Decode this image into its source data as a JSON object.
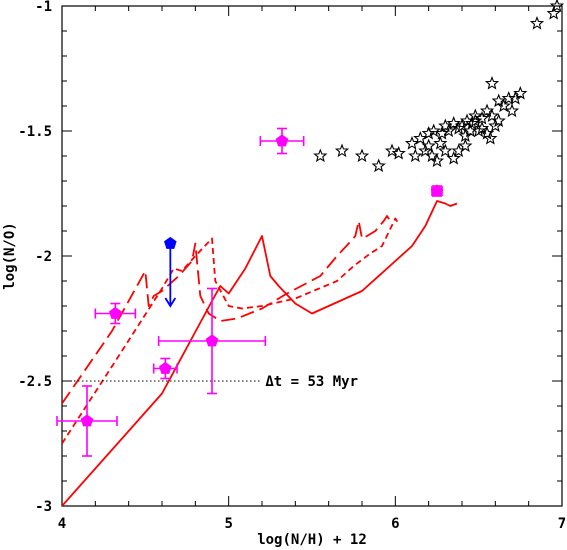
{
  "chart_data": {
    "type": "scatter",
    "xlabel": "log(N/H) + 12",
    "ylabel": "log(N/O)",
    "xlim": [
      4,
      7
    ],
    "ylim": [
      -3,
      -1
    ],
    "xticks": [
      {
        "value": 4,
        "label": "4"
      },
      {
        "value": 5,
        "label": "5"
      },
      {
        "value": 6,
        "label": "6"
      },
      {
        "value": 7,
        "label": "7"
      }
    ],
    "yticks": [
      {
        "value": -3,
        "label": "-3"
      },
      {
        "value": -2.5,
        "label": "-2.5"
      },
      {
        "value": -2,
        "label": "-2"
      },
      {
        "value": -1.5,
        "label": "-1.5"
      },
      {
        "value": -1,
        "label": "-1"
      }
    ],
    "grid": false,
    "colors": {
      "model": "#ff0000",
      "observed": "#ff00ff",
      "upper_limit": "#0000ff",
      "stars": "#000000"
    },
    "annotation": {
      "text": "Δt = 53 Myr",
      "line_y": -2.5,
      "line_x": [
        4.0,
        5.2
      ],
      "text_x": 5.22
    },
    "series": [
      {
        "style": "solid",
        "color": "#ff0000",
        "points": [
          [
            4.0,
            -3.0
          ],
          [
            4.6,
            -2.55
          ],
          [
            4.9,
            -2.18
          ],
          [
            4.95,
            -2.12
          ],
          [
            5.0,
            -2.15
          ],
          [
            5.1,
            -2.05
          ],
          [
            5.2,
            -1.92
          ],
          [
            5.25,
            -2.08
          ],
          [
            5.3,
            -2.12
          ],
          [
            5.4,
            -2.19
          ],
          [
            5.5,
            -2.23
          ],
          [
            5.6,
            -2.2
          ],
          [
            5.8,
            -2.14
          ],
          [
            6.1,
            -1.96
          ],
          [
            6.18,
            -1.88
          ],
          [
            6.25,
            -1.78
          ],
          [
            6.3,
            -1.79
          ],
          [
            6.33,
            -1.8
          ],
          [
            6.37,
            -1.79
          ]
        ]
      },
      {
        "style": "long-dash",
        "color": "#ff0000",
        "points": [
          [
            4.0,
            -2.59
          ],
          [
            4.3,
            -2.3
          ],
          [
            4.45,
            -2.12
          ],
          [
            4.5,
            -2.06
          ],
          [
            4.52,
            -2.2
          ],
          [
            4.55,
            -2.16
          ],
          [
            4.6,
            -2.14
          ],
          [
            4.7,
            -2.08
          ],
          [
            4.78,
            -2.02
          ],
          [
            4.8,
            -1.95
          ],
          [
            4.83,
            -2.16
          ],
          [
            4.88,
            -2.23
          ],
          [
            4.95,
            -2.26
          ],
          [
            5.05,
            -2.25
          ],
          [
            5.2,
            -2.21
          ],
          [
            5.35,
            -2.15
          ],
          [
            5.55,
            -2.08
          ],
          [
            5.65,
            -2.0
          ],
          [
            5.72,
            -1.95
          ],
          [
            5.76,
            -1.92
          ],
          [
            5.78,
            -1.86
          ],
          [
            5.8,
            -1.93
          ],
          [
            5.83,
            -1.92
          ],
          [
            5.88,
            -1.9
          ],
          [
            5.93,
            -1.86
          ],
          [
            5.95,
            -1.84
          ],
          [
            5.98,
            -1.87
          ]
        ]
      },
      {
        "style": "short-dash",
        "color": "#ff0000",
        "points": [
          [
            4.0,
            -2.75
          ],
          [
            4.35,
            -2.39
          ],
          [
            4.6,
            -2.13
          ],
          [
            4.67,
            -2.05
          ],
          [
            4.72,
            -2.06
          ],
          [
            4.8,
            -2.0
          ],
          [
            4.9,
            -1.93
          ],
          [
            4.92,
            -2.1
          ],
          [
            5.0,
            -2.2
          ],
          [
            5.08,
            -2.21
          ],
          [
            5.2,
            -2.2
          ],
          [
            5.4,
            -2.17
          ],
          [
            5.65,
            -2.1
          ],
          [
            5.75,
            -2.04
          ],
          [
            5.85,
            -1.99
          ],
          [
            5.92,
            -1.96
          ],
          [
            6.0,
            -1.85
          ],
          [
            6.02,
            -1.87
          ]
        ]
      }
    ],
    "observed_points": [
      {
        "x": 4.15,
        "y": -2.66,
        "xerr": 0.18,
        "yerr": 0.14
      },
      {
        "x": 4.32,
        "y": -2.23,
        "xerr": 0.12,
        "yerr": 0.04
      },
      {
        "x": 4.62,
        "y": -2.45,
        "xerr": 0.07,
        "yerr": 0.04
      },
      {
        "x": 4.9,
        "y": -2.34,
        "xerr": 0.32,
        "yerr": 0.21
      },
      {
        "x": 5.32,
        "y": -1.54,
        "xerr": 0.13,
        "yerr": 0.05
      },
      {
        "x": 6.25,
        "y": -1.74,
        "xerr": 0.03,
        "yerr": 0.02
      }
    ],
    "upper_limit_point": {
      "x": 4.65,
      "y": -1.95,
      "arrow_to_y": -2.2
    },
    "star_points": [
      [
        5.55,
        -1.6
      ],
      [
        5.68,
        -1.58
      ],
      [
        5.8,
        -1.6
      ],
      [
        5.9,
        -1.64
      ],
      [
        5.98,
        -1.58
      ],
      [
        6.02,
        -1.59
      ],
      [
        6.1,
        -1.55
      ],
      [
        6.12,
        -1.6
      ],
      [
        6.15,
        -1.53
      ],
      [
        6.18,
        -1.58
      ],
      [
        6.2,
        -1.56
      ],
      [
        6.22,
        -1.6
      ],
      [
        6.25,
        -1.62
      ],
      [
        6.2,
        -1.51
      ],
      [
        6.23,
        -1.5
      ],
      [
        6.27,
        -1.55
      ],
      [
        6.3,
        -1.48
      ],
      [
        6.28,
        -1.51
      ],
      [
        6.32,
        -1.5
      ],
      [
        6.35,
        -1.47
      ],
      [
        6.38,
        -1.49
      ],
      [
        6.4,
        -1.48
      ],
      [
        6.42,
        -1.52
      ],
      [
        6.45,
        -1.5
      ],
      [
        6.38,
        -1.58
      ],
      [
        6.43,
        -1.46
      ],
      [
        6.46,
        -1.47
      ],
      [
        6.48,
        -1.46
      ],
      [
        6.5,
        -1.5
      ],
      [
        6.52,
        -1.49
      ],
      [
        6.55,
        -1.51
      ],
      [
        6.48,
        -1.44
      ],
      [
        6.52,
        -1.45
      ],
      [
        6.55,
        -1.42
      ],
      [
        6.58,
        -1.44
      ],
      [
        6.6,
        -1.48
      ],
      [
        6.57,
        -1.53
      ],
      [
        6.62,
        -1.38
      ],
      [
        6.65,
        -1.4
      ],
      [
        6.68,
        -1.37
      ],
      [
        6.7,
        -1.42
      ],
      [
        6.72,
        -1.37
      ],
      [
        6.75,
        -1.35
      ],
      [
        6.62,
        -1.46
      ],
      [
        6.58,
        -1.31
      ],
      [
        6.42,
        -1.56
      ],
      [
        6.35,
        -1.61
      ],
      [
        6.3,
        -1.58
      ],
      [
        6.85,
        -1.07
      ],
      [
        6.95,
        -1.03
      ],
      [
        6.97,
        -1.0
      ]
    ]
  }
}
